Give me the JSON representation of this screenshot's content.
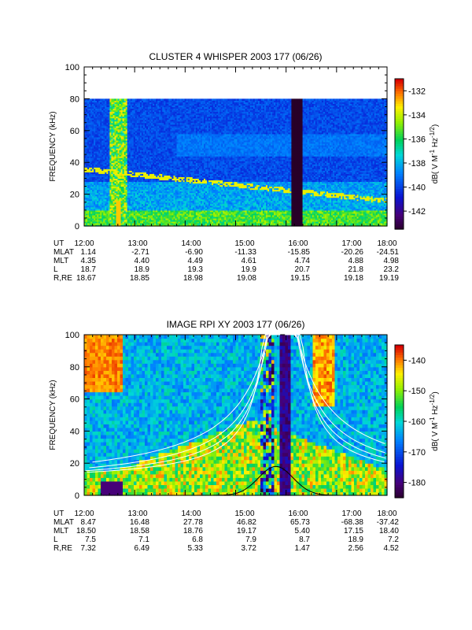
{
  "chart_data": [
    {
      "type": "heatmap",
      "title": "CLUSTER 4 WHISPER 2003 177 (06/26)",
      "ylabel": "FREQUENCY (kHz)",
      "ylim": [
        0,
        100
      ],
      "y_ticks": [
        "0",
        "20",
        "40",
        "60",
        "80",
        "100"
      ],
      "x_ticks": [
        "12:00",
        "13:00",
        "14:00",
        "15:00",
        "16:00",
        "17:00",
        "18:00"
      ],
      "data_top_khz": 80,
      "colorbar": {
        "label": "dB( V M^-1 Hz^-1/2)",
        "label_main": "dB( V M",
        "label_exp1": "-1",
        "label_mid": " Hz",
        "label_exp2": "-1/2",
        "label_end": ")",
        "range": [
          -143.5,
          -131
        ],
        "ticks": [
          "-132",
          "-134",
          "-136",
          "-138",
          "-140",
          "-142"
        ]
      },
      "orbit_table": {
        "rows": [
          {
            "label": "UT",
            "values": [
              "12:00",
              "13:00",
              "14:00",
              "15:00",
              "16:00",
              "17:00",
              "18:00"
            ]
          },
          {
            "label": "MLAT",
            "values": [
              "1.14",
              "-2.71",
              "-6.90",
              "-11.33",
              "-15.85",
              "-20.26",
              "-24.51"
            ]
          },
          {
            "label": "MLT",
            "values": [
              "4.35",
              "4.40",
              "4.49",
              "4.61",
              "4.74",
              "4.88",
              "4.98"
            ]
          },
          {
            "label": "L",
            "values": [
              "18.7",
              "18.9",
              "19.3",
              "19.9",
              "20.7",
              "21.8",
              "23.2"
            ]
          },
          {
            "label": "R,RE",
            "values": [
              "18.67",
              "18.85",
              "18.98",
              "19.08",
              "19.15",
              "19.18",
              "19.19"
            ]
          }
        ]
      }
    },
    {
      "type": "heatmap",
      "title": "IMAGE RPI XY 2003 177 (06/26)",
      "ylabel": "FREQUENCY (kHz)",
      "ylim": [
        0,
        100
      ],
      "y_ticks": [
        "0",
        "20",
        "40",
        "60",
        "80",
        "100"
      ],
      "x_ticks": [
        "12:00",
        "13:00",
        "14:00",
        "15:00",
        "16:00",
        "17:00",
        "18:00"
      ],
      "colorbar": {
        "label": "dB( V M^-1 Hz^-1/2)",
        "label_main": "dB( V M",
        "label_exp1": "-1",
        "label_mid": " Hz",
        "label_exp2": "-1/2",
        "label_end": ")",
        "range": [
          -185,
          -135
        ],
        "ticks": [
          "-140",
          "-150",
          "-160",
          "-170",
          "-180"
        ]
      },
      "orbit_table": {
        "rows": [
          {
            "label": "UT",
            "values": [
              "12:00",
              "13:00",
              "14:00",
              "15:00",
              "16:00",
              "17:00",
              "18:00"
            ]
          },
          {
            "label": "MLAT",
            "values": [
              "8.47",
              "16.48",
              "27.78",
              "46.82",
              "65.73",
              "-68.38",
              "-37.42"
            ]
          },
          {
            "label": "MLT",
            "values": [
              "18.50",
              "18.58",
              "18.76",
              "19.17",
              "5.40",
              "17.15",
              "18.40"
            ]
          },
          {
            "label": "L",
            "values": [
              "7.5",
              "7.1",
              "6.8",
              "7.9",
              "8.7",
              "18.9",
              "7.2"
            ]
          },
          {
            "label": "R,RE",
            "values": [
              "7.32",
              "6.49",
              "5.33",
              "3.72",
              "1.47",
              "2.56",
              "4.52"
            ]
          }
        ]
      }
    }
  ]
}
